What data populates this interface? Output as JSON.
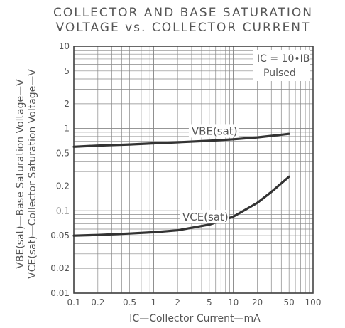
{
  "title_line1": "COLLECTOR AND BASE SATURATION",
  "title_line2": "VOLTAGE vs. COLLECTOR CURRENT",
  "chart_data": {
    "type": "line",
    "xscale": "log",
    "yscale": "log",
    "xlim": [
      0.1,
      100
    ],
    "ylim": [
      0.01,
      10
    ],
    "grid": true,
    "x_ticks": [
      0.1,
      0.2,
      0.5,
      1,
      2,
      5,
      10,
      20,
      50,
      100
    ],
    "x_tick_labels": [
      "0.1",
      "0.2",
      "0.5",
      "1",
      "2",
      "5",
      "10",
      "20",
      "50",
      "100"
    ],
    "y_ticks": [
      0.01,
      0.02,
      0.05,
      0.1,
      0.2,
      0.5,
      1,
      2,
      5,
      10
    ],
    "y_tick_labels": [
      "0.01",
      "0.02",
      "0.05",
      "0.1",
      "0.2",
      "0.5",
      "1",
      "2",
      "5",
      "10"
    ],
    "xlabel": "IC—Collector Current—mA",
    "ylabel_line1": "VBE(sat)—Base Saturation Voltage—V",
    "ylabel_line2": "VCE(sat)—Collector Saturation Voltage—V",
    "annotation_line1": "IC = 10•IB",
    "annotation_line2": "Pulsed",
    "series": [
      {
        "name": "VBE(sat)",
        "x": [
          0.1,
          0.2,
          0.5,
          1,
          2,
          5,
          10,
          20,
          50
        ],
        "y": [
          0.6,
          0.62,
          0.64,
          0.66,
          0.68,
          0.71,
          0.74,
          0.78,
          0.86
        ]
      },
      {
        "name": "VCE(sat)",
        "x": [
          0.1,
          0.2,
          0.5,
          1,
          2,
          5,
          10,
          20,
          30,
          50
        ],
        "y": [
          0.05,
          0.051,
          0.053,
          0.055,
          0.058,
          0.068,
          0.085,
          0.125,
          0.17,
          0.26
        ]
      }
    ]
  }
}
